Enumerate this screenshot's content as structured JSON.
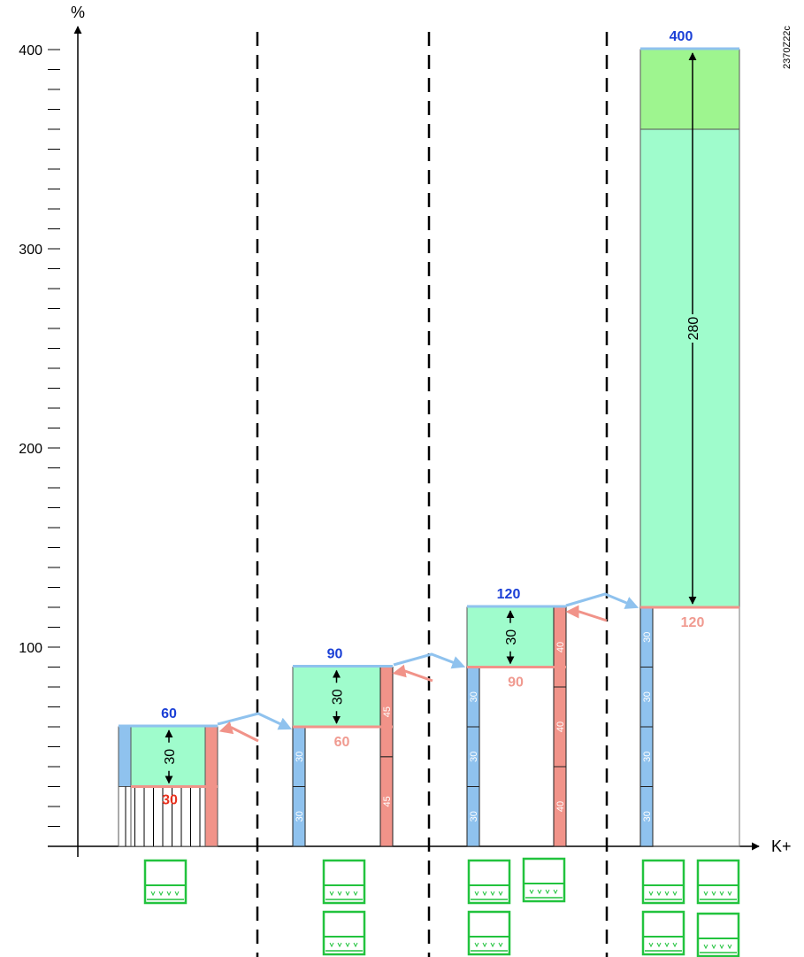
{
  "diagram": {
    "y_axis_label": "%",
    "x_axis_label": "K+",
    "code": "2370Z22c",
    "y_ticks": [
      {
        "value": 400,
        "label": "400"
      },
      {
        "value": 300,
        "label": "300"
      },
      {
        "value": 200,
        "label": "200"
      },
      {
        "value": 100,
        "label": "100"
      }
    ],
    "colors": {
      "blue": "#8fc2ee",
      "blue_text": "#1a3fd6",
      "salmon": "#f19389",
      "salmon_text": "#f09a90",
      "mint": "#9ffccc",
      "green": "#9ef58f",
      "icon": "#22c33e",
      "hatch_text": "#e8321f"
    },
    "stages": [
      {
        "id": "stage-1",
        "top_value": 60,
        "top_label": "60",
        "bottom_value": 30,
        "bottom_label": "30",
        "span_label": "30",
        "blue_segments": [],
        "salmon_segments": [],
        "icons": 1
      },
      {
        "id": "stage-2",
        "top_value": 90,
        "top_label": "90",
        "bottom_value": 60,
        "bottom_label": "60",
        "span_label": "30",
        "blue_segments": [
          {
            "from": 0,
            "to": 30,
            "label": "30"
          },
          {
            "from": 30,
            "to": 60,
            "label": "30"
          }
        ],
        "salmon_segments": [
          {
            "from": 0,
            "to": 45,
            "label": "45"
          },
          {
            "from": 45,
            "to": 90,
            "label": "45"
          }
        ],
        "icons": 2
      },
      {
        "id": "stage-3",
        "top_value": 120,
        "top_label": "120",
        "bottom_value": 90,
        "bottom_label": "90",
        "span_label": "30",
        "blue_segments": [
          {
            "from": 0,
            "to": 30,
            "label": "30"
          },
          {
            "from": 30,
            "to": 60,
            "label": "30"
          },
          {
            "from": 60,
            "to": 90,
            "label": "30"
          }
        ],
        "salmon_segments": [
          {
            "from": 0,
            "to": 40,
            "label": "40"
          },
          {
            "from": 40,
            "to": 80,
            "label": "40"
          },
          {
            "from": 80,
            "to": 120,
            "label": "40"
          }
        ],
        "icons": 3
      },
      {
        "id": "stage-4",
        "top_value": 400,
        "top_label": "400",
        "bottom_value": 120,
        "bottom_label": "120",
        "span_label": "280",
        "green_cap_value": 360,
        "blue_segments": [
          {
            "from": 0,
            "to": 30,
            "label": "30"
          },
          {
            "from": 30,
            "to": 60,
            "label": "30"
          },
          {
            "from": 60,
            "to": 90,
            "label": "30"
          },
          {
            "from": 90,
            "to": 120,
            "label": "30"
          }
        ],
        "salmon_segments": [],
        "icons": 4
      }
    ]
  }
}
